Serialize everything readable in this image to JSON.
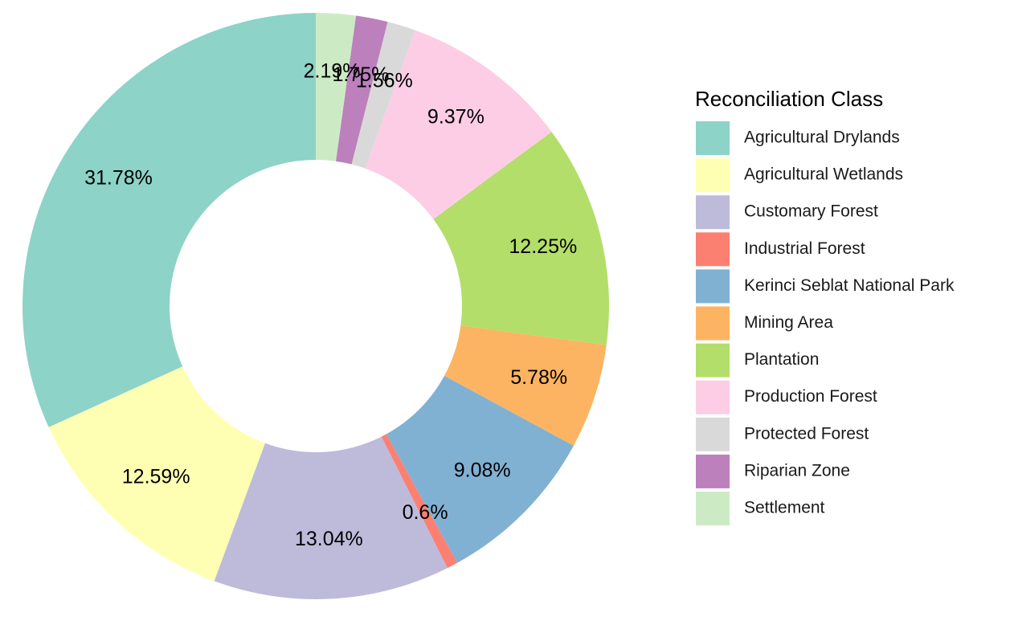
{
  "chart_data": {
    "type": "pie",
    "variant": "donut",
    "legend": {
      "title": "Reconciliation Class",
      "placement": "right"
    },
    "slices": [
      {
        "name": "Agricultural Drylands",
        "value": 31.78,
        "label": "31.78%",
        "color": "#8DD3C7"
      },
      {
        "name": "Agricultural Wetlands",
        "value": 12.59,
        "label": "12.59%",
        "color": "#FFFFB3"
      },
      {
        "name": "Customary Forest",
        "value": 13.04,
        "label": "13.04%",
        "color": "#BEBADA"
      },
      {
        "name": "Industrial Forest",
        "value": 0.6,
        "label": "0.6%",
        "color": "#FB8072"
      },
      {
        "name": "Kerinci Seblat National Park",
        "value": 9.08,
        "label": "9.08%",
        "color": "#80B1D3"
      },
      {
        "name": "Mining Area",
        "value": 5.78,
        "label": "5.78%",
        "color": "#FDB462"
      },
      {
        "name": "Plantation",
        "value": 12.25,
        "label": "12.25%",
        "color": "#B3DE69"
      },
      {
        "name": "Production Forest",
        "value": 9.37,
        "label": "9.37%",
        "color": "#FCCDE5"
      },
      {
        "name": "Protected Forest",
        "value": 1.56,
        "label": "1.56%",
        "color": "#D9D9D9"
      },
      {
        "name": "Riparian Zone",
        "value": 1.75,
        "label": "1.75%",
        "color": "#BC80BD"
      },
      {
        "name": "Settlement",
        "value": 2.19,
        "label": "2.19%",
        "color": "#CCEBC5"
      }
    ],
    "drawing_order_counterclockwise_from_top": [
      "Agricultural Drylands",
      "Agricultural Wetlands",
      "Customary Forest",
      "Industrial Forest",
      "Kerinci Seblat National Park",
      "Mining Area",
      "Plantation",
      "Production Forest",
      "Protected Forest",
      "Riparian Zone",
      "Settlement"
    ]
  }
}
